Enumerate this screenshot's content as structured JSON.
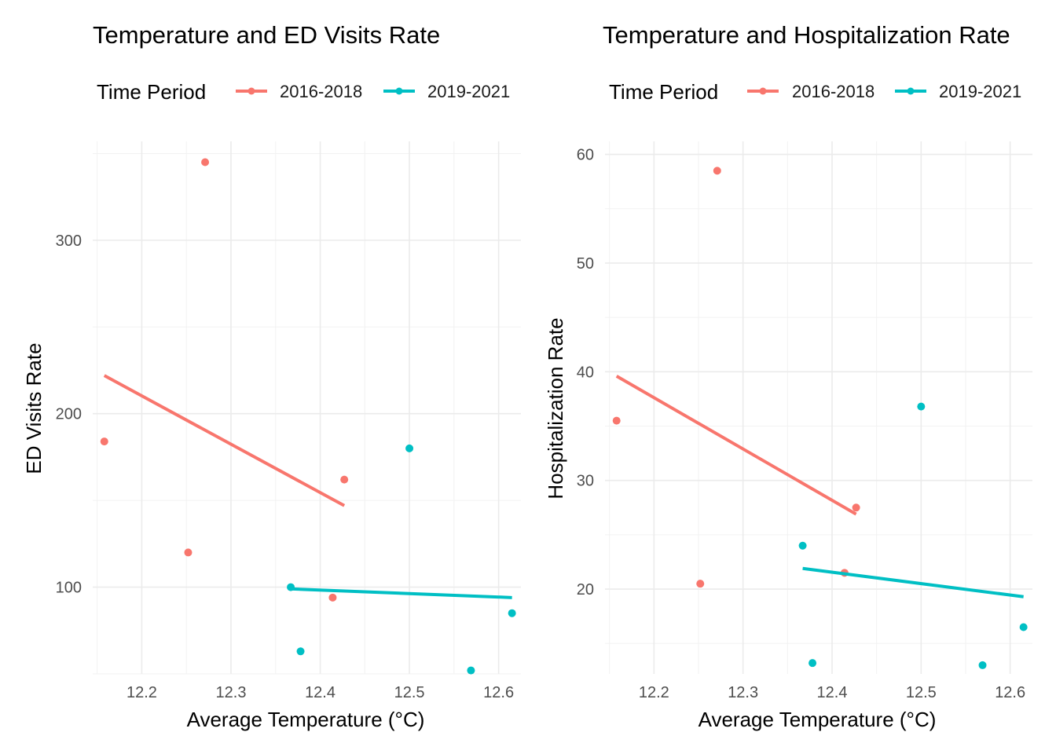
{
  "chart_data": [
    {
      "type": "scatter",
      "title": "Temperature and ED Visits Rate",
      "xlabel": "Average Temperature (°C)",
      "ylabel": "ED Visits Rate",
      "xlim": [
        12.145,
        12.625
      ],
      "ylim": [
        50,
        357
      ],
      "x_ticks": [
        12.2,
        12.3,
        12.4,
        12.5,
        12.6
      ],
      "x_tick_labels": [
        "12.2",
        "12.3",
        "12.4",
        "12.5",
        "12.6"
      ],
      "y_ticks": [
        100,
        200,
        300
      ],
      "y_tick_labels": [
        "100",
        "200",
        "300"
      ],
      "legend": {
        "title": "Time Period",
        "position": "top"
      },
      "grid": true,
      "series": [
        {
          "name": "2016-2018",
          "color": "#F8766D",
          "points": [
            {
              "x": 12.158,
              "y": 184
            },
            {
              "x": 12.252,
              "y": 120
            },
            {
              "x": 12.271,
              "y": 345
            },
            {
              "x": 12.414,
              "y": 94
            },
            {
              "x": 12.427,
              "y": 162
            }
          ],
          "trend": {
            "x": [
              12.158,
              12.427
            ],
            "y": [
              222,
              147
            ]
          }
        },
        {
          "name": "2019-2021",
          "color": "#00BFC4",
          "points": [
            {
              "x": 12.367,
              "y": 100
            },
            {
              "x": 12.378,
              "y": 63
            },
            {
              "x": 12.5,
              "y": 180
            },
            {
              "x": 12.569,
              "y": 52
            },
            {
              "x": 12.615,
              "y": 85
            }
          ],
          "trend": {
            "x": [
              12.367,
              12.615
            ],
            "y": [
              99,
              94
            ]
          }
        }
      ]
    },
    {
      "type": "scatter",
      "title": "Temperature and Hospitalization Rate",
      "xlabel": "Average Temperature (°C)",
      "ylabel": "Hospitalization Rate",
      "xlim": [
        12.145,
        12.625
      ],
      "ylim": [
        12.2,
        61.2
      ],
      "x_ticks": [
        12.2,
        12.3,
        12.4,
        12.5,
        12.6
      ],
      "x_tick_labels": [
        "12.2",
        "12.3",
        "12.4",
        "12.5",
        "12.6"
      ],
      "y_ticks": [
        20,
        30,
        40,
        50,
        60
      ],
      "y_tick_labels": [
        "20",
        "30",
        "40",
        "50",
        "60"
      ],
      "legend": {
        "title": "Time Period",
        "position": "top"
      },
      "grid": true,
      "series": [
        {
          "name": "2016-2018",
          "color": "#F8766D",
          "points": [
            {
              "x": 12.158,
              "y": 35.5
            },
            {
              "x": 12.252,
              "y": 20.5
            },
            {
              "x": 12.271,
              "y": 58.5
            },
            {
              "x": 12.414,
              "y": 21.5
            },
            {
              "x": 12.427,
              "y": 27.5
            }
          ],
          "trend": {
            "x": [
              12.158,
              12.427
            ],
            "y": [
              39.6,
              26.9
            ]
          }
        },
        {
          "name": "2019-2021",
          "color": "#00BFC4",
          "points": [
            {
              "x": 12.367,
              "y": 24.0
            },
            {
              "x": 12.378,
              "y": 13.2
            },
            {
              "x": 12.5,
              "y": 36.8
            },
            {
              "x": 12.569,
              "y": 13.0
            },
            {
              "x": 12.615,
              "y": 16.5
            }
          ],
          "trend": {
            "x": [
              12.367,
              12.615
            ],
            "y": [
              21.9,
              19.3
            ]
          }
        }
      ]
    }
  ]
}
